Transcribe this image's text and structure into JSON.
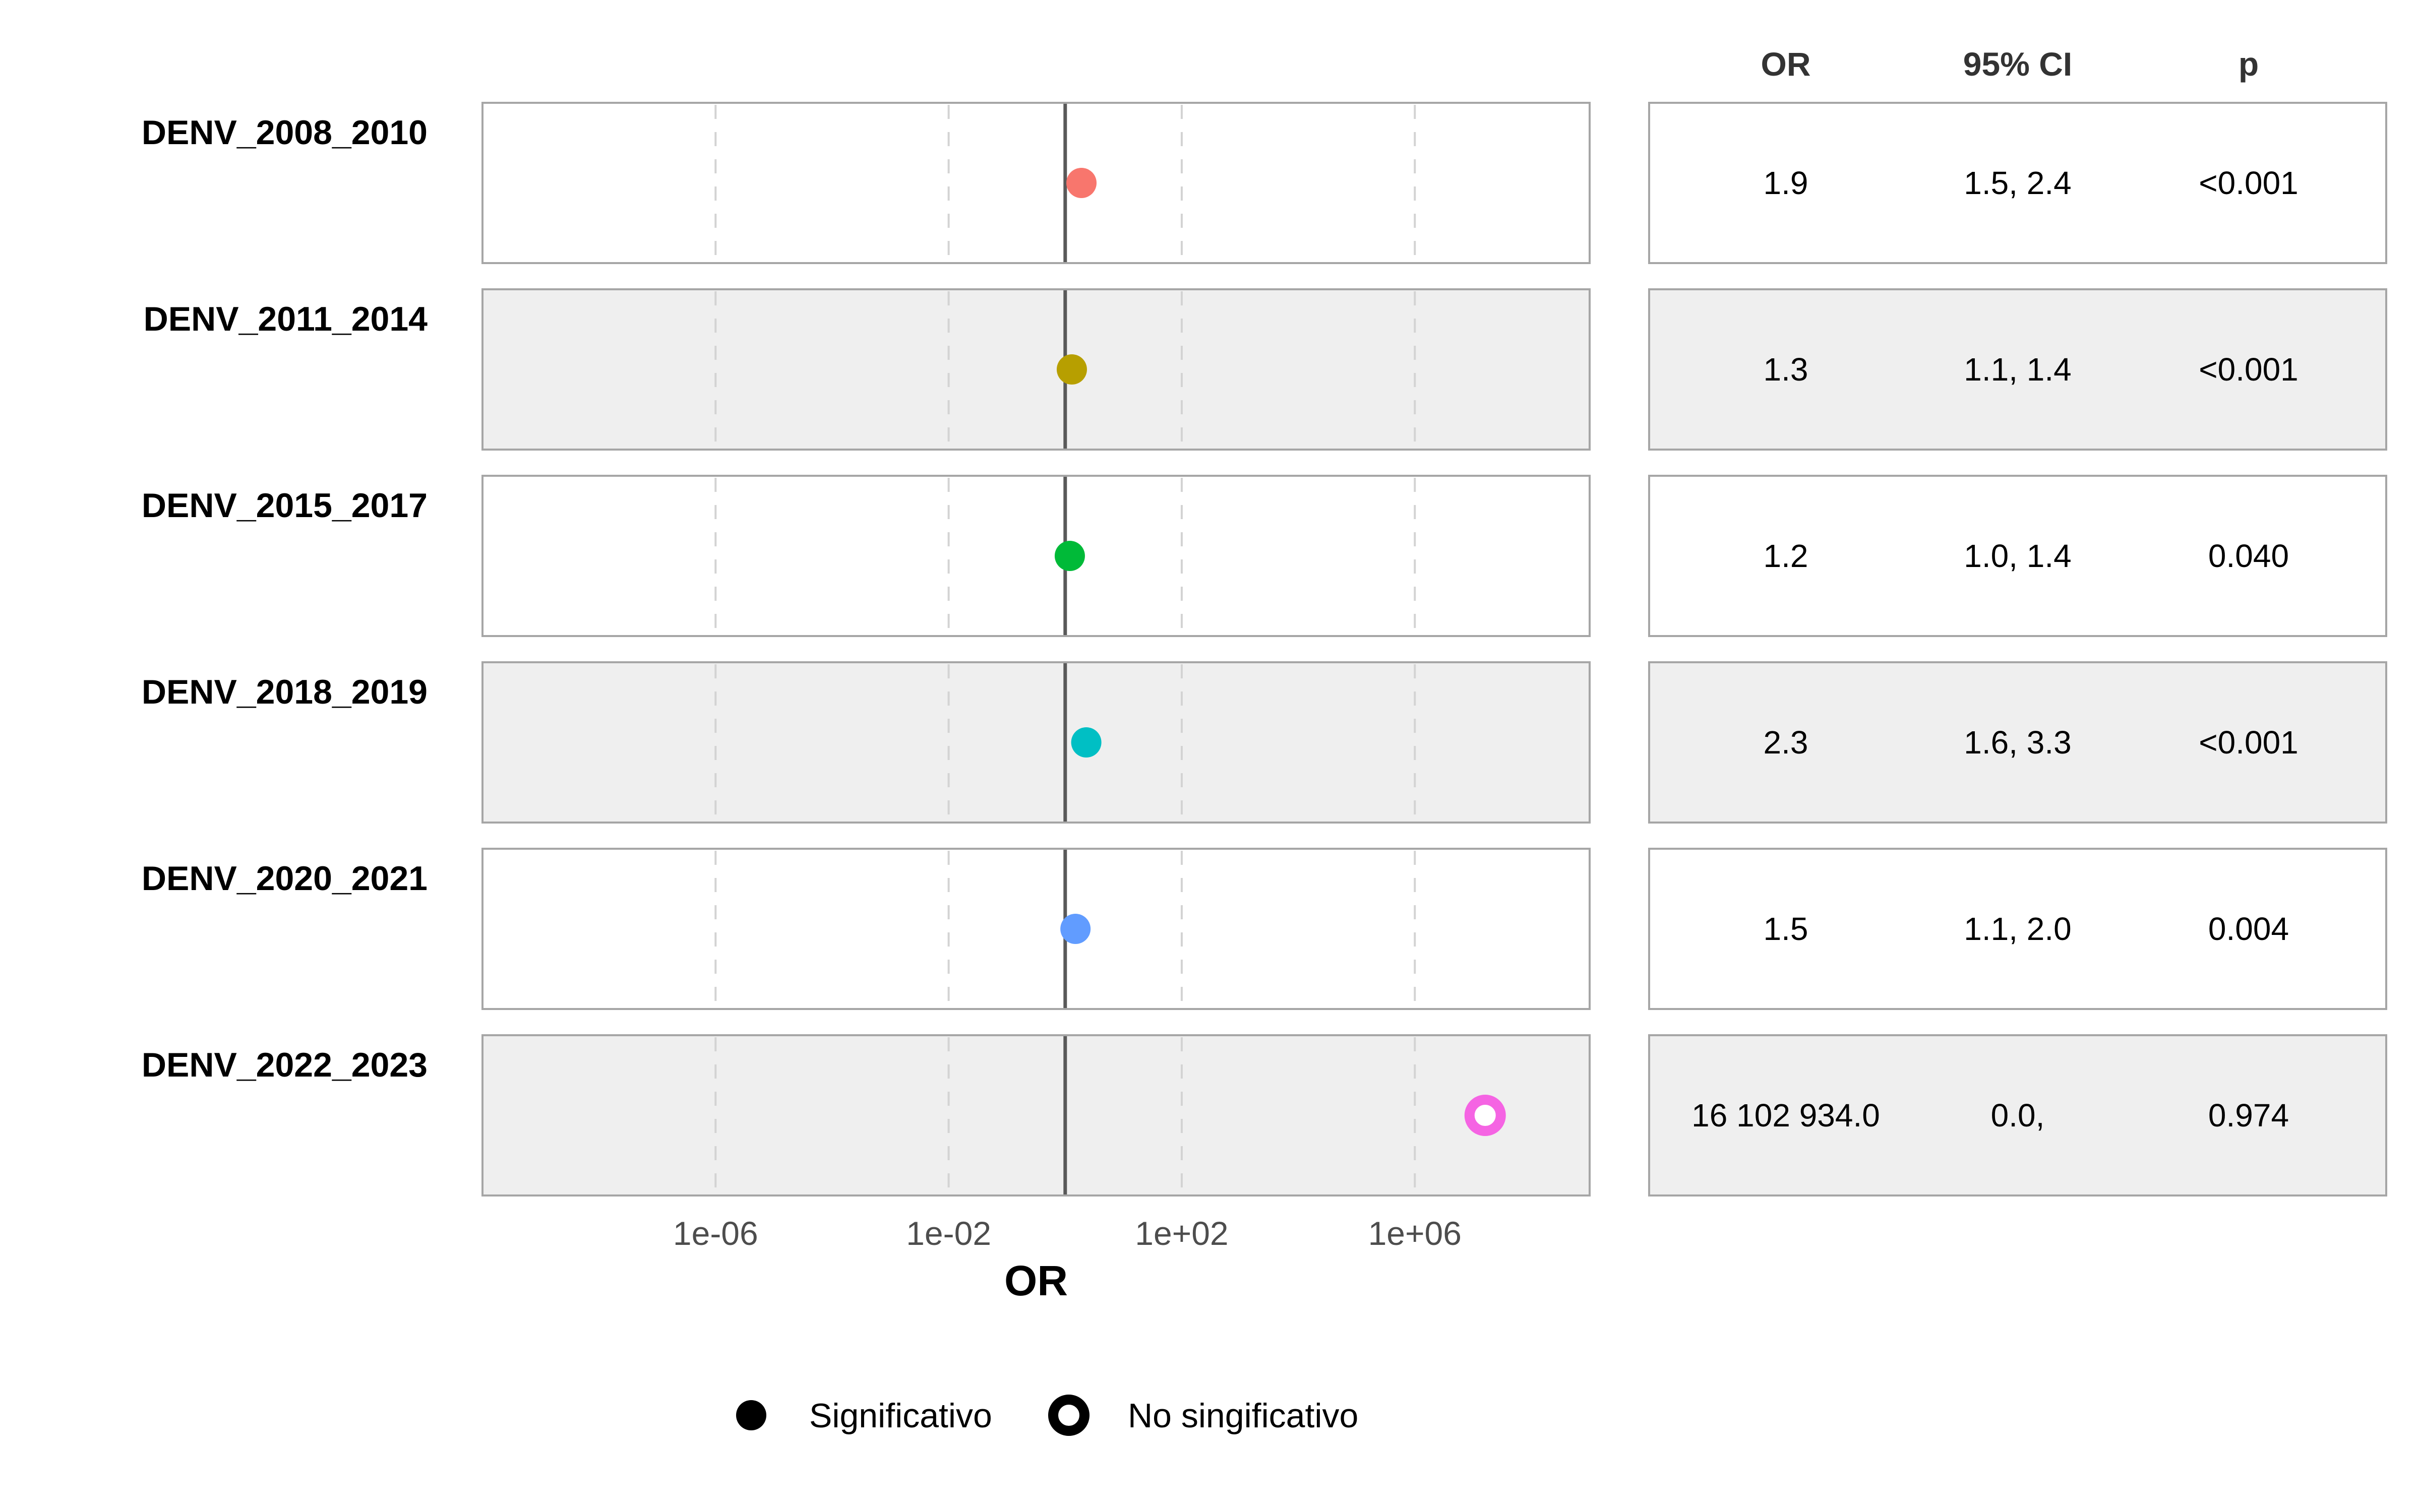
{
  "chart_data": {
    "type": "scatter",
    "xlabel": "OR",
    "x_scale": "log10",
    "xlim": [
      1e-10,
      1000000000.0
    ],
    "x_ticks": [
      "1e-06",
      "1e-02",
      "1e+02",
      "1e+06"
    ],
    "x_tick_values": [
      1e-06,
      0.01,
      100.0,
      1000000.0
    ],
    "reference_line": 1,
    "grid": true,
    "legend_position": "bottom",
    "table_headers": [
      "OR",
      "95% CI",
      "p"
    ],
    "rows": [
      {
        "label": "DENV_2008_2010",
        "or": 1.9,
        "or_text": "1.9",
        "ci_text": "1.5, 2.4",
        "p_text": "<0.001",
        "significant": true,
        "color": "#F8766D"
      },
      {
        "label": "DENV_2011_2014",
        "or": 1.3,
        "or_text": "1.3",
        "ci_text": "1.1, 1.4",
        "p_text": "<0.001",
        "significant": true,
        "color": "#B79F00"
      },
      {
        "label": "DENV_2015_2017",
        "or": 1.2,
        "or_text": "1.2",
        "ci_text": "1.0, 1.4",
        "p_text": "0.040",
        "significant": true,
        "color": "#00BA38"
      },
      {
        "label": "DENV_2018_2019",
        "or": 2.3,
        "or_text": "2.3",
        "ci_text": "1.6, 3.3",
        "p_text": "<0.001",
        "significant": true,
        "color": "#00BFC4"
      },
      {
        "label": "DENV_2020_2021",
        "or": 1.5,
        "or_text": "1.5",
        "ci_text": "1.1, 2.0",
        "p_text": "0.004",
        "significant": true,
        "color": "#619CFF"
      },
      {
        "label": "DENV_2022_2023",
        "or": 16102934.0,
        "or_text": "16 102 934.0",
        "ci_text": "0.0,",
        "p_text": "0.974",
        "significant": false,
        "color": "#F564E3"
      }
    ],
    "legend": [
      {
        "label": "Significativo",
        "significant": true
      },
      {
        "label": "No singificativo",
        "significant": false
      }
    ]
  }
}
